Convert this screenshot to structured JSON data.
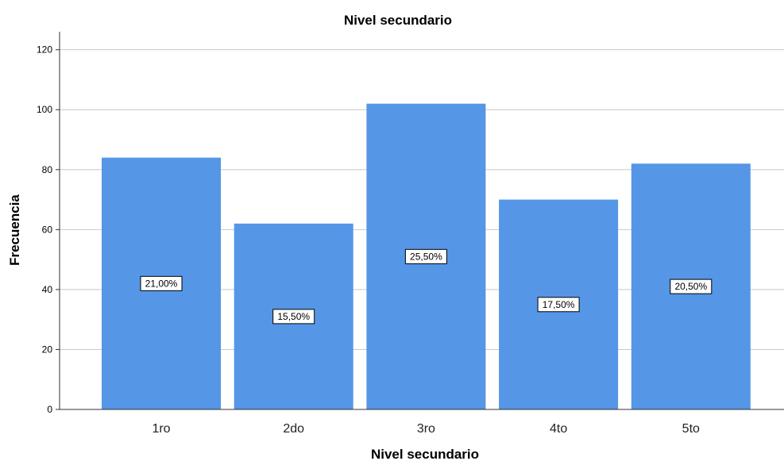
{
  "chart_data": {
    "type": "bar",
    "title": "Nivel secundario",
    "xlabel": "Nivel secundario",
    "ylabel": "Frecuencia",
    "categories": [
      "1ro",
      "2do",
      "3ro",
      "4to",
      "5to"
    ],
    "values": [
      84,
      62,
      102,
      70,
      82
    ],
    "data_labels": [
      "21,00%",
      "15,50%",
      "25,50%",
      "17,50%",
      "20,50%"
    ],
    "ylim": [
      0,
      126
    ],
    "yticks": [
      "0",
      "20",
      "40",
      "60",
      "80",
      "100",
      "120"
    ],
    "grid": true,
    "legend": "none",
    "colors": {
      "bar": "#5596e6",
      "grid": "#c8c8c8",
      "axis": "#333333",
      "label_box_fill": "#ffffff",
      "label_box_stroke": "#000000"
    }
  }
}
